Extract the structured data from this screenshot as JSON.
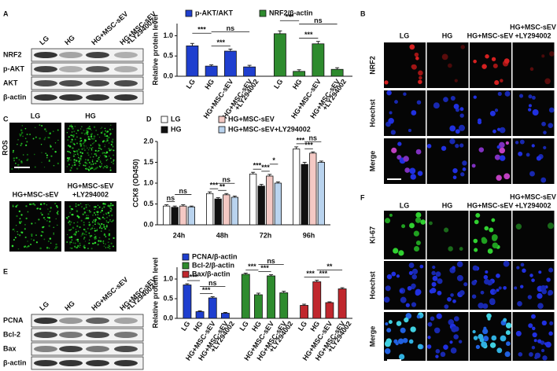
{
  "panel_labels": [
    "A",
    "B",
    "C",
    "D",
    "E",
    "F"
  ],
  "panel_a": {
    "columns": [
      "LG",
      "HG",
      "HG+MSC-sEV",
      [
        "HG+MSC-sEV",
        "+LY294002"
      ]
    ],
    "rows": [
      "NRF2",
      "p-AKT",
      "AKT",
      "β-actin"
    ]
  },
  "panel_b": {
    "columns": [
      "LG",
      "HG",
      "HG+MSC-sEV",
      [
        "HG+MSC-sEV",
        "+LY294002"
      ]
    ],
    "rows": [
      "NRF2",
      "Hoechst",
      "Merge"
    ]
  },
  "panel_c": {
    "columns": [
      "LG",
      "HG",
      "HG+MSC-sEV",
      [
        "HG+MSC-sEV",
        "+LY294002"
      ]
    ],
    "stain": "ROS"
  },
  "panel_e": {
    "columns": [
      "LG",
      "HG",
      "HG+MSC-sEV",
      [
        "HG+MSC-sEV",
        "+LY294002"
      ]
    ],
    "rows": [
      "PCNA",
      "Bcl-2",
      "Bax",
      "β-actin"
    ]
  },
  "panel_f": {
    "columns": [
      "LG",
      "HG",
      "HG+MSC-sEV",
      [
        "HG+MSC-sEV",
        "+LY294002"
      ]
    ],
    "rows": [
      "Ki-67",
      "Hoechst",
      "Merge"
    ]
  },
  "chart_data": [
    {
      "type": "bar",
      "y_label": "Relative protein level",
      "categories": [
        "LG",
        "HG",
        "HG+MSC-sEV",
        [
          "HG+MSC-sEV",
          "+LY294002"
        ]
      ],
      "series": [
        {
          "name": "p-AKT/AKT",
          "color": "#1f3fcf",
          "values": [
            0.75,
            0.25,
            0.62,
            0.23
          ],
          "errors": [
            0.06,
            0.03,
            0.05,
            0.04
          ]
        },
        {
          "name": "NRF2/β-actin",
          "color": "#2e8b2e",
          "values": [
            1.05,
            0.12,
            0.8,
            0.17
          ],
          "errors": [
            0.07,
            0.04,
            0.06,
            0.04
          ]
        }
      ],
      "annotations": [
        "***",
        "***",
        "ns",
        "***",
        "***",
        "ns"
      ],
      "ylim": [
        0,
        1.3
      ],
      "yticks": [
        {
          "value": 0,
          "label": "0.0"
        },
        0.5,
        {
          "value": 1,
          "label": "1.0"
        }
      ]
    },
    {
      "type": "bar",
      "y_label": "CCK8 (OD450)",
      "categories": [
        "24h",
        "48h",
        "72h",
        "96h"
      ],
      "series": [
        {
          "name": "LG",
          "color": "#ffffff",
          "values": [
            0.45,
            0.75,
            1.22,
            1.82
          ],
          "errors": [
            0.03,
            0.04,
            0.04,
            0.05
          ]
        },
        {
          "name": "HG",
          "color": "#111111",
          "values": [
            0.42,
            0.62,
            0.93,
            1.45
          ],
          "errors": [
            0.03,
            0.03,
            0.04,
            0.05
          ]
        },
        {
          "name": "HG+MSC-sEV",
          "color": "#f4c9c4",
          "values": [
            0.45,
            0.72,
            1.17,
            1.72
          ],
          "errors": [
            0.03,
            0.03,
            0.04,
            0.03
          ]
        },
        {
          "name": "HG+MSC-sEV+LY294002",
          "color": "#b9d3ee",
          "values": [
            0.43,
            0.66,
            1.0,
            1.5
          ],
          "errors": [
            0.02,
            0.03,
            0.03,
            0.03
          ]
        }
      ],
      "annotations": [
        "ns",
        "ns",
        "***",
        "**",
        "ns",
        "***",
        "***",
        "*",
        "***",
        "***",
        "ns"
      ],
      "ylim": [
        0,
        2.0
      ],
      "yticks": [
        {
          "value": 0,
          "label": "0.0"
        },
        0.5,
        {
          "value": 1,
          "label": "1.0"
        },
        1.5,
        {
          "value": 2,
          "label": "2.0"
        }
      ]
    },
    {
      "type": "bar",
      "y_label": "Relative protein level",
      "categories": [
        "LG",
        "HG",
        "HG+MSC-sEV",
        [
          "HG+MSC-sEV",
          "+LY294002"
        ]
      ],
      "series": [
        {
          "name": "PCNA/β-actin",
          "color": "#1f3fcf",
          "values": [
            0.85,
            0.17,
            0.52,
            0.13
          ],
          "errors": [
            0.03,
            0.02,
            0.03,
            0.02
          ]
        },
        {
          "name": "Bcl-2/β-actin",
          "color": "#2e8b2e",
          "values": [
            1.12,
            0.6,
            1.08,
            0.65
          ],
          "errors": [
            0.03,
            0.04,
            0.03,
            0.04
          ]
        },
        {
          "name": "Bax/β-actin",
          "color": "#c0272d",
          "values": [
            0.33,
            0.93,
            0.4,
            0.75
          ],
          "errors": [
            0.03,
            0.04,
            0.02,
            0.03
          ]
        }
      ],
      "annotations": [
        "***",
        "***",
        "ns",
        "***",
        "***",
        "ns",
        "***",
        "***",
        "**"
      ],
      "ylim": [
        0,
        1.3
      ],
      "yticks": [
        {
          "value": 0,
          "label": "0.0"
        },
        0.5,
        {
          "value": 1,
          "label": "1.0"
        }
      ]
    }
  ]
}
